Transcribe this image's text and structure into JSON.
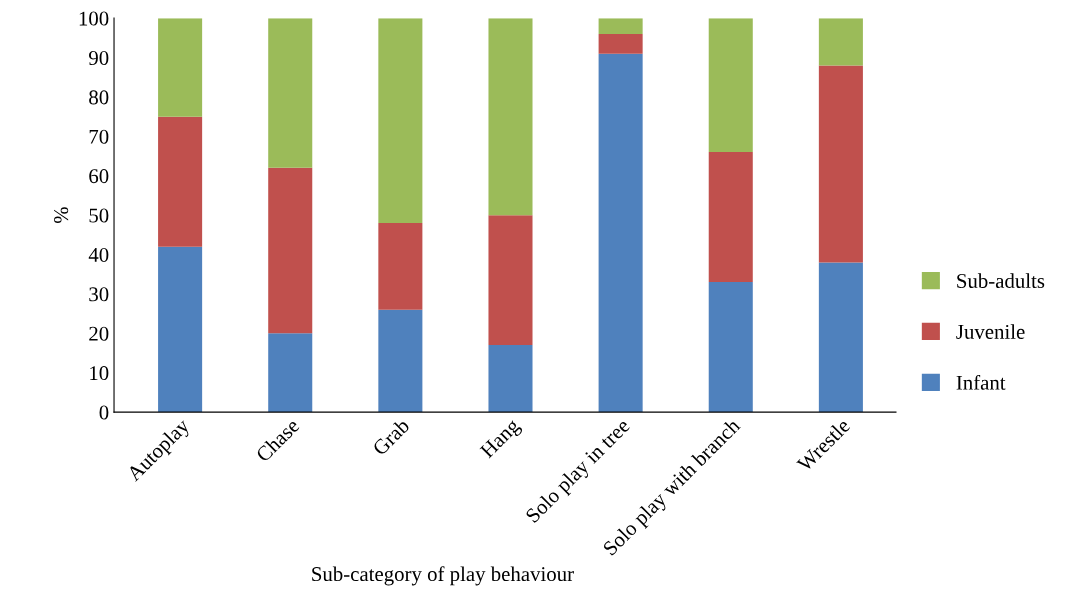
{
  "chart_data": {
    "type": "bar",
    "stacked": true,
    "xlabel": "Sub-category of play behaviour",
    "ylabel": "%",
    "categories": [
      "Autoplay",
      "Chase",
      "Grab",
      "Hang",
      "Solo play in tree",
      "Solo play with branch",
      "Wrestle"
    ],
    "series": [
      {
        "name": "Infant",
        "color": "#4f81bd",
        "values": [
          42,
          20,
          26,
          17,
          91,
          33,
          38
        ]
      },
      {
        "name": "Juvenile",
        "color": "#c0504d",
        "values": [
          33,
          42,
          22,
          33,
          5,
          33,
          50
        ]
      },
      {
        "name": "Sub-adults",
        "color": "#9bbb59",
        "values": [
          25,
          38,
          52,
          50,
          4,
          34,
          12
        ]
      }
    ],
    "ylim": [
      0,
      100
    ],
    "yticks": [
      0,
      10,
      20,
      30,
      40,
      50,
      60,
      70,
      80,
      90,
      100
    ],
    "grid": false,
    "legend": "right"
  }
}
